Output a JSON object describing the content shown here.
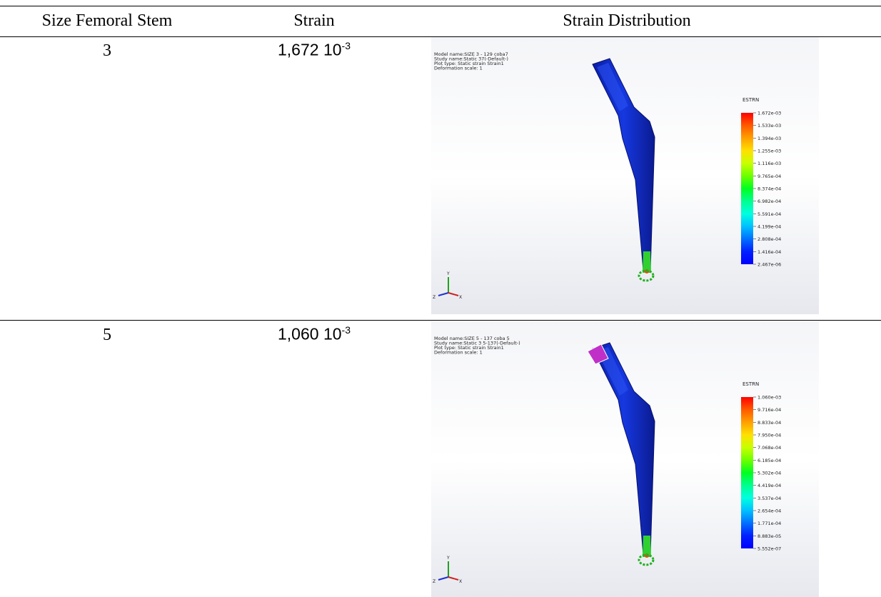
{
  "table": {
    "header": [
      "Size Femoral Stem",
      "Strain",
      "Strain Distribution"
    ],
    "rows": [
      {
        "size": "3",
        "strain": {
          "mantissa": "1,672 10",
          "exponent": "-3"
        },
        "plot": {
          "info": [
            "Model name:SIZE 3 - 129 coba7",
            "Study name:Static 37(-Default-)",
            "Plot type: Static strain Strain1",
            "Deformation scale: 1"
          ],
          "legend_title": "ESTRN",
          "legend_labels": [
            "1.672e-03",
            "1.533e-03",
            "1.394e-03",
            "1.255e-03",
            "1.116e-03",
            "9.765e-04",
            "8.374e-04",
            "6.982e-04",
            "5.591e-04",
            "4.199e-04",
            "2.808e-04",
            "1.416e-04",
            "2.467e-06"
          ],
          "axes": [
            "Y",
            "Z",
            "X"
          ]
        }
      },
      {
        "size": "5",
        "strain": {
          "mantissa": "1,060 10",
          "exponent": "-3"
        },
        "plot": {
          "info": [
            "Model name:SIZE 5 - 137 coba 5",
            "Study name:Static 3 5-137(-Default-)",
            "Plot type: Static strain Strain1",
            "Deformation scale: 1"
          ],
          "legend_title": "ESTRN",
          "legend_labels": [
            "1.060e-03",
            "9.716e-04",
            "8.833e-04",
            "7.950e-04",
            "7.068e-04",
            "6.185e-04",
            "5.302e-04",
            "4.419e-04",
            "3.537e-04",
            "2.654e-04",
            "1.771e-04",
            "8.883e-05",
            "5.552e-07"
          ],
          "axes": [
            "Y",
            "Z",
            "X"
          ]
        }
      }
    ]
  }
}
